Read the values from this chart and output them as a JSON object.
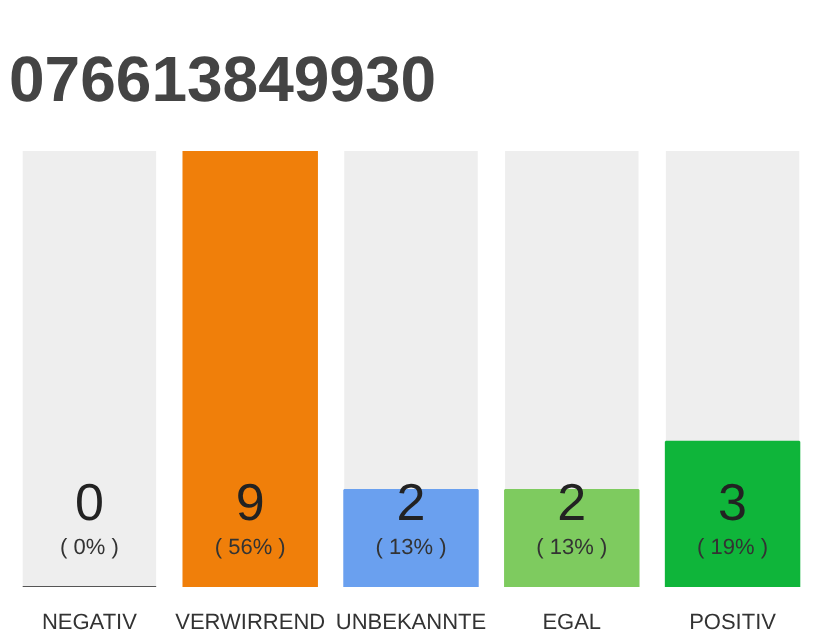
{
  "chart_data": {
    "type": "bar",
    "title": "076613849930",
    "categories": [
      "NEGATIV",
      "VERWIRREND",
      "UNBEKANNTE",
      "EGAL",
      "POSITIV"
    ],
    "values": [
      0,
      9,
      2,
      2,
      3
    ],
    "colors": [
      "#555555",
      "#f07f0a",
      "#6aa0ef",
      "#7ecb5f",
      "#0fb53a"
    ],
    "data_labels": true,
    "annotations": [
      "( 0% )",
      "( 56% )",
      "( 13% )",
      "( 13% )",
      "( 19% )"
    ],
    "grid": false
  }
}
